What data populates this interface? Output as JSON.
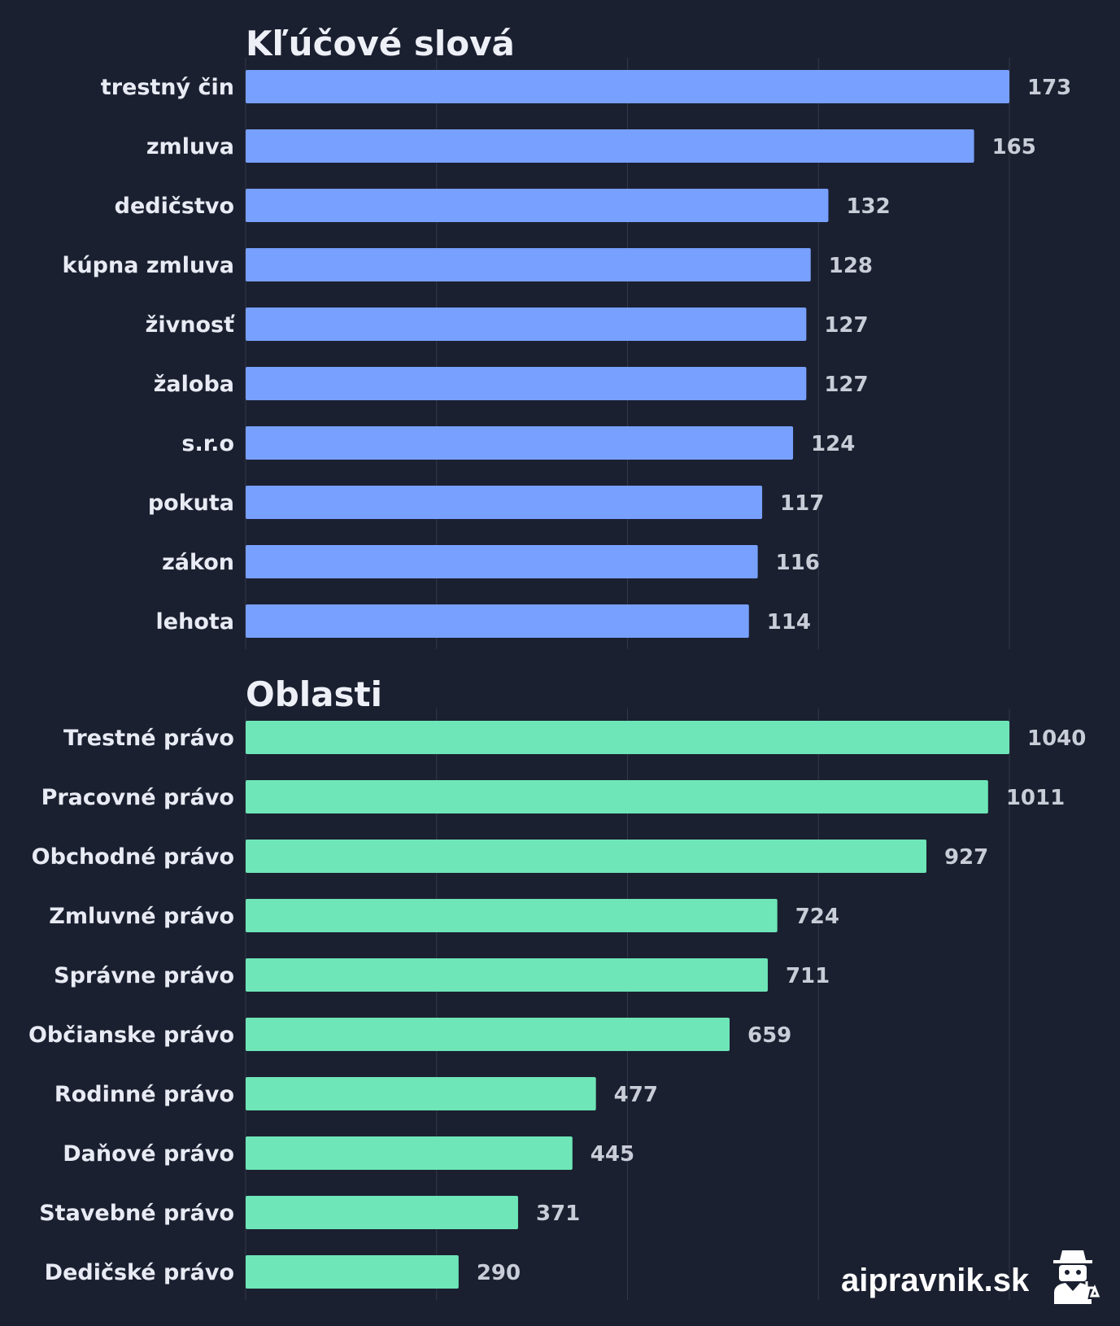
{
  "chart_data": [
    {
      "type": "bar",
      "orientation": "horizontal",
      "title": "Kľúčové slová",
      "categories": [
        "trestný čin",
        "zmluva",
        "dedičstvo",
        "kúpna zmluva",
        "živnosť",
        "žaloba",
        "s.r.o",
        "pokuta",
        "zákon",
        "lehota"
      ],
      "values": [
        173,
        165,
        132,
        128,
        127,
        127,
        124,
        117,
        116,
        114
      ],
      "color": "#78a0ff",
      "xlim": [
        0,
        173
      ],
      "grid": true
    },
    {
      "type": "bar",
      "orientation": "horizontal",
      "title": "Oblasti",
      "categories": [
        "Trestné právo",
        "Pracovné právo",
        "Obchodné právo",
        "Zmluvné právo",
        "Správne právo",
        "Občianske právo",
        "Rodinné právo",
        "Daňové právo",
        "Stavebné právo",
        "Dedičské právo"
      ],
      "values": [
        1040,
        1011,
        927,
        724,
        711,
        659,
        477,
        445,
        371,
        290
      ],
      "color": "#6ee6b8",
      "xlim": [
        0,
        1040
      ],
      "grid": true
    }
  ],
  "logo": {
    "text": "aipravnik.sk",
    "icon": "detective-lawyer-icon"
  }
}
